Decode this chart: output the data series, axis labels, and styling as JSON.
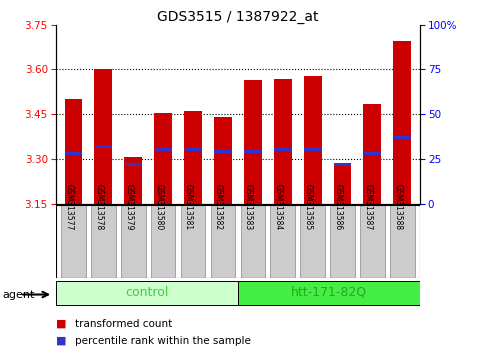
{
  "title": "GDS3515 / 1387922_at",
  "samples": [
    "GSM313577",
    "GSM313578",
    "GSM313579",
    "GSM313580",
    "GSM313581",
    "GSM313582",
    "GSM313583",
    "GSM313584",
    "GSM313585",
    "GSM313586",
    "GSM313587",
    "GSM313588"
  ],
  "groups": [
    "control",
    "control",
    "control",
    "control",
    "control",
    "control",
    "htt-171-82Q",
    "htt-171-82Q",
    "htt-171-82Q",
    "htt-171-82Q",
    "htt-171-82Q",
    "htt-171-82Q"
  ],
  "transformed_count": [
    3.5,
    3.6,
    3.305,
    3.455,
    3.462,
    3.44,
    3.565,
    3.568,
    3.578,
    3.285,
    3.483,
    3.695
  ],
  "percentile_rank": [
    28,
    32,
    22,
    30,
    30,
    29,
    29,
    30,
    30,
    22,
    28,
    37
  ],
  "y_min": 3.15,
  "y_max": 3.75,
  "y_ticks_left": [
    3.15,
    3.3,
    3.45,
    3.6,
    3.75
  ],
  "y_ticks_right": [
    0,
    25,
    50,
    75,
    100
  ],
  "bar_color": "#cc0000",
  "percentile_color": "#3333cc",
  "tick_bg_color": "#cccccc",
  "control_color_light": "#ccffcc",
  "control_color_dark": "#44cc44",
  "htt_color_light": "#44ee44",
  "htt_color_dark": "#22aa22",
  "legend_red_label": "transformed count",
  "legend_blue_label": "percentile rank within the sample",
  "agent_label": "agent",
  "control_label": "control",
  "htt_label": "htt-171-82Q",
  "grid_yticks": [
    3.3,
    3.45,
    3.6
  ]
}
